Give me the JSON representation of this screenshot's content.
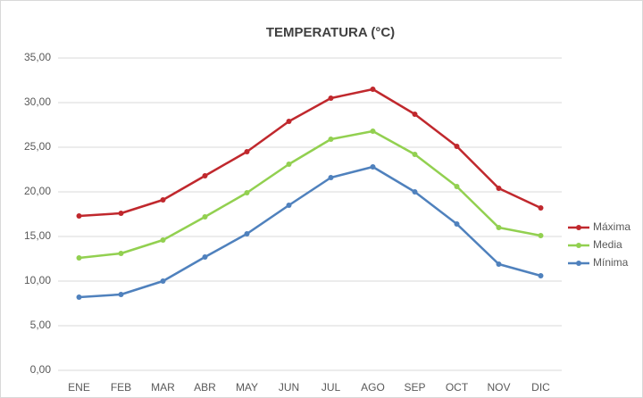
{
  "chart_data": {
    "type": "line",
    "title": "TEMPERATURA (°C)",
    "categories": [
      "ENE",
      "FEB",
      "MAR",
      "ABR",
      "MAY",
      "JUN",
      "JUL",
      "AGO",
      "SEP",
      "OCT",
      "NOV",
      "DIC"
    ],
    "series": [
      {
        "name": "Máxima",
        "color": "#c0282d",
        "values": [
          17.3,
          17.6,
          19.1,
          21.8,
          24.5,
          27.9,
          30.5,
          31.5,
          28.7,
          25.1,
          20.4,
          18.2
        ]
      },
      {
        "name": "Media",
        "color": "#92d050",
        "values": [
          12.6,
          13.1,
          14.6,
          17.2,
          19.9,
          23.1,
          25.9,
          26.8,
          24.2,
          20.6,
          16.0,
          15.1
        ]
      },
      {
        "name": "Mínima",
        "color": "#4f81bd",
        "values": [
          8.2,
          8.5,
          10.0,
          12.7,
          15.3,
          18.5,
          21.6,
          22.8,
          20.0,
          16.4,
          11.9,
          10.6
        ]
      }
    ],
    "ylim": [
      0,
      35
    ],
    "yticks": [
      {
        "value": 0,
        "label": "0,00"
      },
      {
        "value": 5,
        "label": "5,00"
      },
      {
        "value": 10,
        "label": "10,00"
      },
      {
        "value": 15,
        "label": "15,00"
      },
      {
        "value": 20,
        "label": "20,00"
      },
      {
        "value": 25,
        "label": "25,00"
      },
      {
        "value": 30,
        "label": "30,00"
      },
      {
        "value": 35,
        "label": "35,00"
      }
    ],
    "grid": true,
    "legend": "right"
  }
}
